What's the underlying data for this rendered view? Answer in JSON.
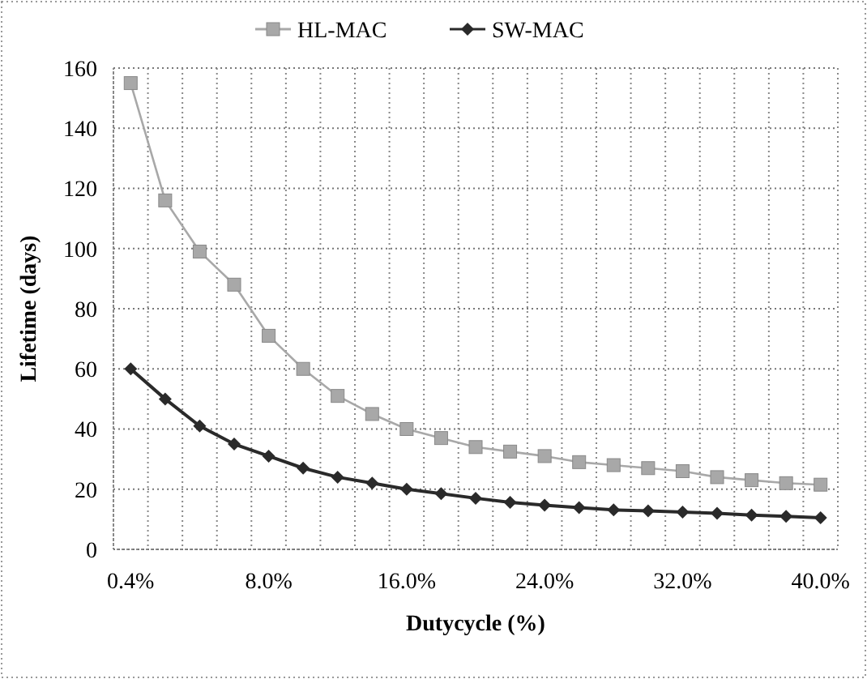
{
  "chart_data": {
    "type": "line",
    "xlabel": "Dutycycle (%)",
    "ylabel": "Lifetime (days)",
    "categories": [
      "0.4%",
      null,
      null,
      null,
      "8.0%",
      null,
      null,
      null,
      "16.0%",
      null,
      null,
      null,
      "24.0%",
      null,
      null,
      null,
      "32.0%",
      null,
      null,
      null,
      "40.0%"
    ],
    "series": [
      {
        "name": "HL-MAC",
        "color": "#a8a8a8",
        "marker": "square",
        "values": [
          155,
          116,
          99,
          88,
          71,
          60,
          51,
          45,
          40,
          37,
          34,
          32.5,
          31,
          29,
          28,
          27,
          26,
          24,
          23,
          22,
          21.5
        ]
      },
      {
        "name": "SW-MAC",
        "color": "#2a2a2a",
        "marker": "diamond",
        "values": [
          60,
          50,
          41,
          35,
          31,
          27,
          24,
          22,
          20,
          18.5,
          17,
          15.6,
          14.7,
          13.9,
          13.1,
          12.8,
          12.4,
          12,
          11.4,
          11,
          10.5
        ]
      }
    ],
    "ylim": [
      0,
      160
    ],
    "yticks": [
      0,
      20,
      40,
      60,
      80,
      100,
      120,
      140,
      160
    ],
    "grid": true,
    "legend": "top",
    "line_style": "solid"
  }
}
